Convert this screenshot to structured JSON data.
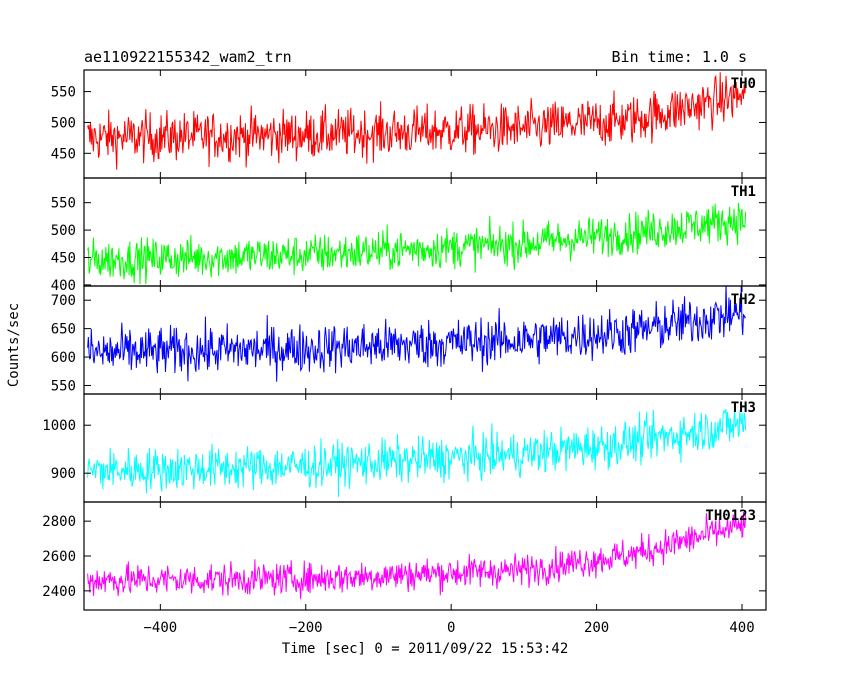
{
  "header": {
    "title": "ae110922155342_wam2_trn",
    "bin_time": "Bin time: 1.0 s"
  },
  "chart_data": {
    "type": "line",
    "xlabel": "Time [sec] 0 = 2011/09/22 15:53:42",
    "ylabel": "Counts/sec",
    "xlim": [
      -505,
      433
    ],
    "x_ticks": [
      -400,
      -200,
      0,
      200,
      400
    ],
    "x_tick_labels": [
      "−400",
      "−200",
      "0",
      "200",
      "400"
    ],
    "x_range_data": [
      -500,
      405
    ],
    "panels": [
      {
        "name": "TH0",
        "color": "#ff0000",
        "ylim": [
          410,
          585
        ],
        "yticks": [
          450,
          500,
          550
        ],
        "trend": [
          [
            -500,
            475
          ],
          [
            -200,
            480
          ],
          [
            100,
            490
          ],
          [
            250,
            505
          ],
          [
            405,
            545
          ]
        ],
        "noise": 28
      },
      {
        "name": "TH1",
        "color": "#00ff00",
        "ylim": [
          398,
          595
        ],
        "yticks": [
          400,
          450,
          500,
          550
        ],
        "trend": [
          [
            -500,
            445
          ],
          [
            -200,
            455
          ],
          [
            100,
            475
          ],
          [
            250,
            495
          ],
          [
            405,
            520
          ]
        ],
        "noise": 26
      },
      {
        "name": "TH2",
        "color": "#0000ff",
        "ylim": [
          535,
          725
        ],
        "yticks": [
          550,
          600,
          650,
          700
        ],
        "trend": [
          [
            -500,
            607
          ],
          [
            -200,
            615
          ],
          [
            100,
            630
          ],
          [
            250,
            645
          ],
          [
            405,
            680
          ]
        ],
        "noise": 30
      },
      {
        "name": "TH3",
        "color": "#00ffff",
        "ylim": [
          840,
          1065
        ],
        "yticks": [
          900,
          1000
        ],
        "trend": [
          [
            -500,
            905
          ],
          [
            -200,
            915
          ],
          [
            100,
            940
          ],
          [
            250,
            965
          ],
          [
            405,
            1005
          ]
        ],
        "noise": 32
      },
      {
        "name": "TH0123",
        "color": "#ff00ff",
        "ylim": [
          2290,
          2910
        ],
        "yticks": [
          2400,
          2600,
          2800
        ],
        "trend": [
          [
            -500,
            2460
          ],
          [
            -200,
            2470
          ],
          [
            100,
            2520
          ],
          [
            250,
            2610
          ],
          [
            405,
            2780
          ]
        ],
        "noise": 65
      }
    ]
  }
}
